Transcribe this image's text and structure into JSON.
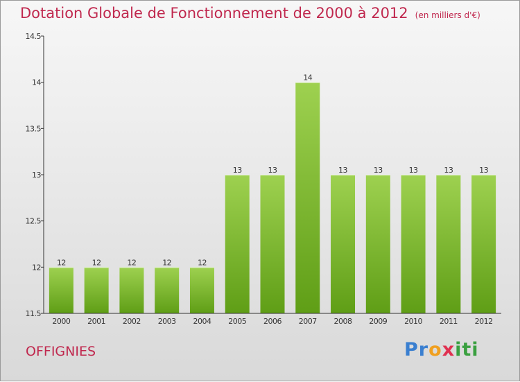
{
  "header": {
    "title": "Dotation Globale de Fonctionnement de 2000 à 2012",
    "unit": "(en milliers d'€)"
  },
  "commune": "OFFIGNIES",
  "logo": {
    "text": "Proxiti",
    "letters": [
      "P",
      "r",
      "o",
      "x",
      "i",
      "t",
      "i"
    ],
    "colors": [
      "#3a7fd0",
      "#3a7fd0",
      "#f0a020",
      "#e03050",
      "#3aa040",
      "#3aa040",
      "#3aa040"
    ]
  },
  "chart_data": {
    "type": "bar",
    "categories": [
      "2000",
      "2001",
      "2002",
      "2003",
      "2004",
      "2005",
      "2006",
      "2007",
      "2008",
      "2009",
      "2010",
      "2011",
      "2012"
    ],
    "values": [
      12,
      12,
      12,
      12,
      12,
      13,
      13,
      14,
      13,
      13,
      13,
      13,
      13
    ],
    "data_labels": [
      "12",
      "12",
      "12",
      "12",
      "12",
      "13",
      "13",
      "14",
      "13",
      "13",
      "13",
      "13",
      "13"
    ],
    "ylim": [
      11.5,
      14.5
    ],
    "yticks": [
      11.5,
      12,
      12.5,
      13,
      13.5,
      14,
      14.5
    ],
    "ytick_labels": [
      "11.5",
      "12",
      "12.5",
      "13",
      "13.5",
      "14",
      "14.5"
    ],
    "grid": false,
    "colors": {
      "bar_top": "#9ed150",
      "bar_bottom": "#5f9e16",
      "axis": "#333333",
      "text": "#333333"
    }
  }
}
